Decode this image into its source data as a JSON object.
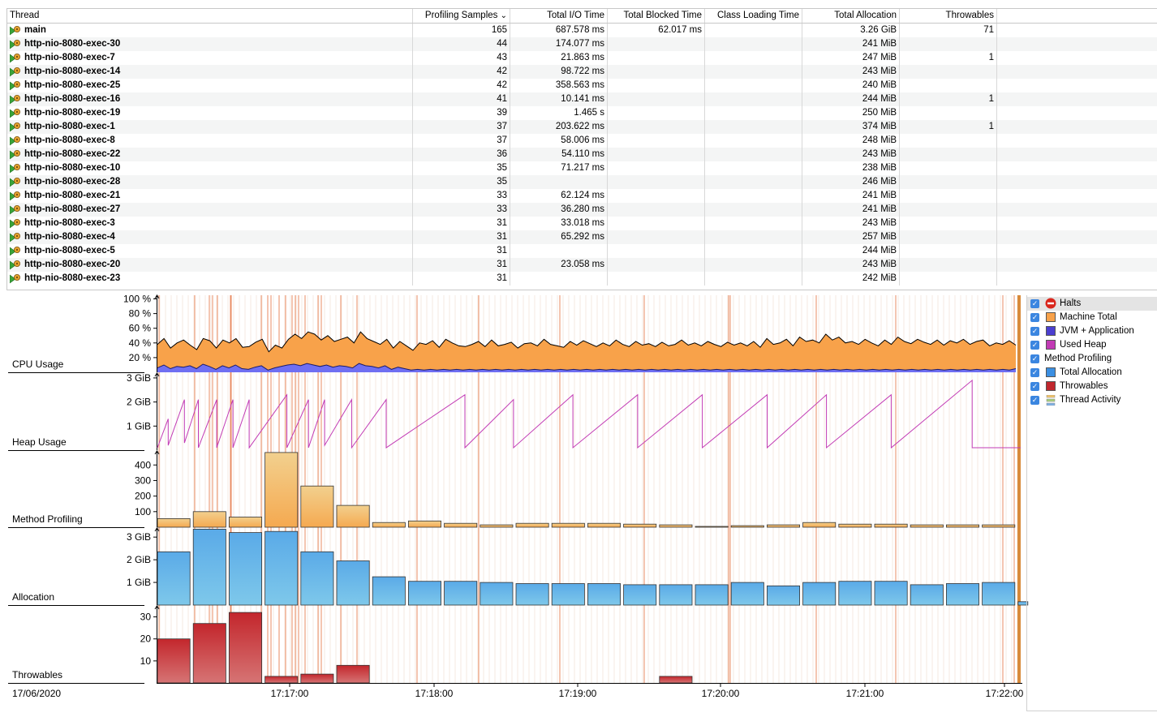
{
  "table": {
    "columns": [
      "Thread",
      "Profiling Samples",
      "Total I/O Time",
      "Total Blocked Time",
      "Class Loading Time",
      "Total Allocation",
      "Throwables"
    ],
    "sort_indicator": "⌄",
    "rows": [
      [
        "main",
        "165",
        "687.578 ms",
        "62.017 ms",
        "",
        "3.26 GiB",
        "71"
      ],
      [
        "http-nio-8080-exec-30",
        "44",
        "174.077 ms",
        "",
        "",
        "241 MiB",
        ""
      ],
      [
        "http-nio-8080-exec-7",
        "43",
        "21.863 ms",
        "",
        "",
        "247 MiB",
        "1"
      ],
      [
        "http-nio-8080-exec-14",
        "42",
        "98.722 ms",
        "",
        "",
        "243 MiB",
        ""
      ],
      [
        "http-nio-8080-exec-25",
        "42",
        "358.563 ms",
        "",
        "",
        "240 MiB",
        ""
      ],
      [
        "http-nio-8080-exec-16",
        "41",
        "10.141 ms",
        "",
        "",
        "244 MiB",
        "1"
      ],
      [
        "http-nio-8080-exec-19",
        "39",
        "1.465 s",
        "",
        "",
        "250 MiB",
        ""
      ],
      [
        "http-nio-8080-exec-1",
        "37",
        "203.622 ms",
        "",
        "",
        "374 MiB",
        "1"
      ],
      [
        "http-nio-8080-exec-8",
        "37",
        "58.006 ms",
        "",
        "",
        "248 MiB",
        ""
      ],
      [
        "http-nio-8080-exec-22",
        "36",
        "54.110 ms",
        "",
        "",
        "243 MiB",
        ""
      ],
      [
        "http-nio-8080-exec-10",
        "35",
        "71.217 ms",
        "",
        "",
        "238 MiB",
        ""
      ],
      [
        "http-nio-8080-exec-28",
        "35",
        "",
        "",
        "",
        "246 MiB",
        ""
      ],
      [
        "http-nio-8080-exec-21",
        "33",
        "62.124 ms",
        "",
        "",
        "241 MiB",
        ""
      ],
      [
        "http-nio-8080-exec-27",
        "33",
        "36.280 ms",
        "",
        "",
        "241 MiB",
        ""
      ],
      [
        "http-nio-8080-exec-3",
        "31",
        "33.018 ms",
        "",
        "",
        "243 MiB",
        ""
      ],
      [
        "http-nio-8080-exec-4",
        "31",
        "65.292 ms",
        "",
        "",
        "257 MiB",
        ""
      ],
      [
        "http-nio-8080-exec-5",
        "31",
        "",
        "",
        "",
        "244 MiB",
        ""
      ],
      [
        "http-nio-8080-exec-20",
        "31",
        "23.058 ms",
        "",
        "",
        "243 MiB",
        ""
      ],
      [
        "http-nio-8080-exec-23",
        "31",
        "",
        "",
        "",
        "242 MiB",
        ""
      ]
    ]
  },
  "colors": {
    "machine_total": "#f8a24a",
    "jvm_app": "#6f6ff2",
    "used_heap": "#c23bb5",
    "method_profiling": "#f2d08e",
    "total_allocation": "#4a9ee6",
    "throwables": "#c0272d",
    "halt_line": "#e67a4a"
  },
  "chart_data": {
    "type": "area",
    "time_axis": {
      "date": "17/06/2020",
      "ticks": [
        "17:17:00",
        "17:18:00",
        "17:19:00",
        "17:20:00",
        "17:21:00",
        "17:22:00"
      ]
    },
    "lanes": [
      {
        "label": "CPU Usage",
        "ticks": [
          "100 %",
          "80 %",
          "60 %",
          "40 %",
          "20 %"
        ],
        "tick_values": [
          100,
          80,
          60,
          40,
          20
        ],
        "ylim": [
          0,
          105
        ],
        "series": [
          {
            "name": "Machine Total",
            "values": [
              38,
              46,
              33,
              40,
              44,
              37,
              31,
              46,
              43,
              33,
              44,
              40,
              46,
              34,
              35,
              41,
              45,
              28,
              37,
              33,
              45,
              52,
              46,
              55,
              52,
              44,
              50,
              42,
              45,
              48,
              40,
              55,
              46,
              42,
              38,
              45,
              33,
              42,
              36,
              30,
              40,
              38,
              43,
              34,
              45,
              40,
              36,
              35,
              38,
              42,
              35,
              44,
              36,
              38,
              41,
              33,
              39,
              40,
              36,
              45,
              38,
              36,
              34,
              42,
              37,
              43,
              39,
              35,
              40,
              36,
              44,
              38,
              35,
              42,
              37,
              39,
              35,
              41,
              36,
              38,
              44,
              37,
              40,
              36,
              42,
              38,
              35,
              41,
              37,
              40,
              36,
              42,
              34,
              46,
              38,
              40,
              45,
              36,
              48,
              42,
              44,
              40,
              52,
              44,
              48,
              40,
              42,
              38,
              45,
              40,
              36,
              44,
              38,
              48,
              42,
              39,
              45,
              41,
              38,
              44,
              37,
              43,
              40,
              45,
              38,
              42,
              44,
              36,
              40,
              38,
              43,
              37
            ]
          },
          {
            "name": "JVM + Application",
            "values": [
              6,
              10,
              5,
              8,
              7,
              9,
              5,
              11,
              8,
              4,
              9,
              6,
              10,
              5,
              4,
              7,
              9,
              3,
              6,
              8,
              10,
              11,
              9,
              12,
              10,
              8,
              10,
              7,
              9,
              8,
              6,
              12,
              9,
              8,
              6,
              9,
              4,
              7,
              5,
              3,
              4,
              3,
              4,
              3,
              4,
              3,
              4,
              3,
              4,
              3,
              4,
              3,
              4,
              3,
              4,
              3,
              4,
              3,
              4,
              3,
              4,
              3,
              4,
              3,
              4,
              3,
              4,
              3,
              4,
              3,
              4,
              3,
              4,
              3,
              4,
              3,
              4,
              3,
              4,
              3,
              4,
              3,
              4,
              3,
              4,
              3,
              4,
              3,
              4,
              3,
              4,
              3,
              4,
              3,
              4,
              3,
              4,
              3,
              4,
              3,
              4,
              3,
              4,
              3,
              4,
              3,
              4,
              3,
              4,
              3,
              4,
              3,
              4,
              3,
              4,
              3,
              4,
              3,
              4,
              3,
              4,
              3,
              4,
              3,
              4,
              3,
              4,
              3,
              4,
              3,
              4,
              3,
              5
            ]
          }
        ]
      },
      {
        "label": "Heap Usage",
        "ticks": [
          "3 GiB",
          "2 GiB",
          "1 GiB"
        ],
        "tick_values": [
          3,
          2,
          1
        ],
        "ylim": [
          0,
          3.2
        ],
        "series": [
          {
            "name": "Used Heap",
            "points": [
              [
                0,
                0.1
              ],
              [
                0.1,
                1.3
              ],
              [
                0.1,
                0.2
              ],
              [
                0.25,
                2.1
              ],
              [
                0.25,
                0.3
              ],
              [
                0.38,
                2.1
              ],
              [
                0.38,
                0.1
              ],
              [
                0.55,
                2.1
              ],
              [
                0.55,
                0.1
              ],
              [
                0.7,
                2.1
              ],
              [
                0.7,
                0.1
              ],
              [
                0.85,
                2.1
              ],
              [
                0.85,
                0.1
              ],
              [
                1.2,
                2.3
              ],
              [
                1.2,
                0.1
              ],
              [
                1.4,
                2.1
              ],
              [
                1.4,
                0.1
              ],
              [
                1.55,
                2.1
              ],
              [
                1.55,
                0.2
              ],
              [
                1.8,
                2.1
              ],
              [
                1.8,
                0.1
              ],
              [
                2.12,
                2.1
              ],
              [
                2.12,
                0.1
              ],
              [
                2.85,
                2.3
              ],
              [
                2.85,
                0.1
              ],
              [
                3.3,
                2.1
              ],
              [
                3.3,
                0.1
              ],
              [
                3.85,
                2.3
              ],
              [
                3.85,
                0.1
              ],
              [
                4.45,
                2.3
              ],
              [
                4.45,
                0.1
              ],
              [
                5.05,
                2.3
              ],
              [
                5.05,
                0.1
              ],
              [
                5.65,
                2.3
              ],
              [
                5.65,
                0.1
              ],
              [
                6.2,
                2.3
              ],
              [
                6.2,
                0.1
              ],
              [
                6.8,
                2.3
              ],
              [
                6.8,
                0.1
              ],
              [
                7.55,
                2.9
              ],
              [
                7.55,
                0.1
              ],
              [
                7.55,
                0.1
              ],
              [
                8.0,
                0.1
              ]
            ]
          }
        ]
      },
      {
        "label": "Method Profiling",
        "ticks": [
          "400",
          "300",
          "200",
          "100"
        ],
        "tick_values": [
          400,
          300,
          200,
          100
        ],
        "ylim": [
          0,
          490
        ],
        "series": [
          {
            "name": "Method Profiling",
            "values": [
              55,
              100,
              65,
              480,
              265,
              140,
              30,
              40,
              25,
              15,
              25,
              25,
              25,
              20,
              15,
              5,
              10,
              15,
              30,
              20,
              20,
              15,
              15,
              15
            ]
          }
        ]
      },
      {
        "label": "Allocation",
        "ticks": [
          "3 GiB",
          "2 GiB",
          "1 GiB"
        ],
        "tick_values": [
          3,
          2,
          1
        ],
        "ylim": [
          0,
          3.4
        ],
        "series": [
          {
            "name": "Total Allocation",
            "values": [
              2.35,
              3.35,
              3.2,
              3.25,
              2.35,
              1.95,
              1.25,
              1.05,
              1.05,
              1.0,
              0.95,
              0.95,
              0.95,
              0.9,
              0.9,
              0.9,
              1.0,
              0.85,
              1.0,
              1.05,
              1.05,
              0.9,
              0.95,
              1.0,
              0.15
            ]
          }
        ]
      },
      {
        "label": "Throwables",
        "ticks": [
          "30",
          "20",
          "10"
        ],
        "tick_values": [
          30,
          20,
          10
        ],
        "ylim": [
          0,
          35
        ],
        "series": [
          {
            "name": "Throwables",
            "values": [
              20,
              27,
              32,
              3,
              4,
              8,
              0,
              0,
              0,
              0,
              0,
              0,
              0,
              0,
              3,
              0,
              0,
              0,
              0,
              0,
              0,
              0,
              0,
              0
            ]
          }
        ]
      }
    ]
  },
  "legend": {
    "items": [
      {
        "label": "Halts",
        "checked": true,
        "icon": "halt-icon"
      },
      {
        "label": "Machine Total",
        "checked": true,
        "color": "#f8a24a"
      },
      {
        "label": "JVM + Application",
        "checked": true,
        "color": "#4b3fd0"
      },
      {
        "label": "Used Heap",
        "checked": true,
        "color": "#c23bb5"
      },
      {
        "label": "Method Profiling",
        "checked": true
      },
      {
        "label": "Total Allocation",
        "checked": true,
        "color": "#3b8fe2"
      },
      {
        "label": "Throwables",
        "checked": true,
        "color": "#c0272d"
      },
      {
        "label": "Thread Activity",
        "checked": true,
        "icon": "thread-activity-icon"
      }
    ]
  }
}
